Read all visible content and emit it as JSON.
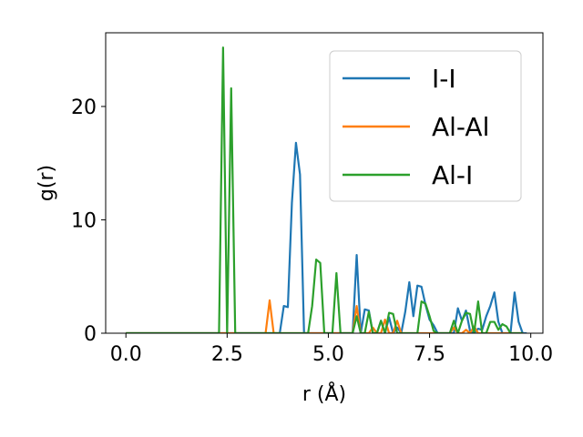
{
  "chart_data": {
    "type": "line",
    "title": "",
    "xlabel": "r (Å)",
    "ylabel": "g(r)",
    "xlim": [
      -0.5,
      10.3
    ],
    "ylim": [
      0,
      26.5
    ],
    "xticks": [
      0.0,
      2.5,
      5.0,
      7.5,
      10.0
    ],
    "xtick_labels": [
      "0.0",
      "2.5",
      "5.0",
      "7.5",
      "10.0"
    ],
    "yticks": [
      0,
      10,
      20
    ],
    "ytick_labels": [
      "0",
      "10",
      "20"
    ],
    "grid": false,
    "legend_position": "top-right",
    "series": [
      {
        "name": "I-I",
        "color": "#1f77b4",
        "x": [
          0.0,
          3.6,
          3.7,
          3.8,
          3.9,
          4.0,
          4.1,
          4.2,
          4.3,
          4.4,
          4.5,
          5.6,
          5.7,
          5.8,
          5.9,
          6.0,
          6.1,
          6.2,
          6.3,
          6.4,
          6.5,
          6.6,
          6.7,
          6.8,
          6.9,
          7.0,
          7.1,
          7.2,
          7.3,
          7.4,
          7.5,
          7.6,
          7.7,
          7.8,
          8.1,
          8.2,
          8.3,
          8.4,
          8.5,
          8.6,
          8.7,
          8.8,
          8.9,
          9.0,
          9.1,
          9.2,
          9.3,
          9.4,
          9.5,
          9.6,
          9.7,
          9.8,
          9.9
        ],
        "y": [
          0,
          0,
          0,
          0,
          2.4,
          2.3,
          11.5,
          16.8,
          14.0,
          0,
          0,
          0,
          6.9,
          0,
          2.1,
          2.0,
          0,
          0,
          1.1,
          0,
          1.4,
          0,
          0.5,
          0,
          1.9,
          4.5,
          1.5,
          4.2,
          4.1,
          2.5,
          1.2,
          0.7,
          0,
          0,
          0,
          2.2,
          1.1,
          2.0,
          0.2,
          0,
          0.4,
          0.3,
          1.5,
          2.4,
          3.6,
          1.0,
          0,
          0,
          0,
          3.6,
          1.0,
          0,
          0
        ]
      },
      {
        "name": "Al-Al",
        "color": "#ff7f0e",
        "x": [
          0.0,
          3.45,
          3.55,
          3.65,
          3.75,
          5.6,
          5.7,
          5.8,
          6.0,
          6.1,
          6.2,
          6.3,
          6.4,
          6.5,
          6.6,
          6.7,
          6.8,
          7.0,
          8.0,
          8.1,
          8.2,
          8.3,
          8.4,
          8.5,
          8.6,
          8.7,
          8.8,
          9.8
        ],
        "y": [
          0,
          0,
          2.9,
          0,
          0,
          0,
          2.4,
          0,
          0,
          0.5,
          0,
          0,
          1.2,
          0,
          0,
          1.1,
          0,
          0,
          0,
          0.5,
          0,
          0,
          0.3,
          0,
          0.6,
          0,
          0,
          0
        ]
      },
      {
        "name": "Al-I",
        "color": "#2ca02c",
        "x": [
          0.0,
          2.3,
          2.4,
          2.5,
          2.6,
          2.7,
          4.4,
          4.5,
          4.6,
          4.7,
          4.8,
          4.9,
          5.0,
          5.1,
          5.2,
          5.3,
          5.4,
          5.5,
          5.6,
          5.7,
          5.8,
          5.9,
          6.0,
          6.1,
          6.2,
          6.3,
          6.4,
          6.5,
          6.6,
          6.7,
          6.8,
          6.9,
          7.0,
          7.1,
          7.2,
          7.3,
          7.4,
          7.5,
          7.6,
          7.7,
          7.8,
          8.0,
          8.1,
          8.2,
          8.3,
          8.4,
          8.5,
          8.6,
          8.7,
          8.8,
          8.9,
          9.0,
          9.1,
          9.2,
          9.3,
          9.4,
          9.5,
          9.6,
          9.8
        ],
        "y": [
          0,
          0,
          25.2,
          0,
          21.6,
          0,
          0,
          0,
          2.4,
          6.5,
          6.2,
          0,
          0,
          0,
          5.3,
          0,
          0,
          0,
          0,
          1.5,
          0,
          0,
          1.9,
          0,
          0,
          1.1,
          0,
          1.8,
          1.7,
          0,
          0,
          0,
          0,
          0,
          0,
          2.8,
          2.6,
          1.5,
          0.2,
          0,
          0,
          0,
          1.1,
          0,
          1.1,
          1.8,
          1.7,
          0,
          2.8,
          0,
          0,
          1.0,
          1.0,
          0.3,
          0.8,
          0.6,
          0,
          0,
          0
        ]
      }
    ]
  }
}
